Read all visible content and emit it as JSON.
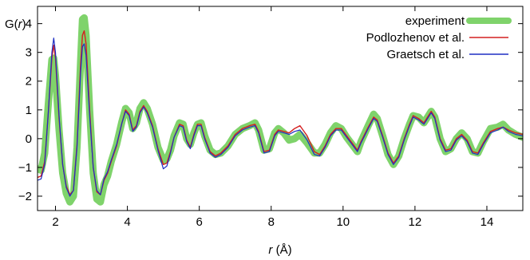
{
  "chart_data": {
    "type": "line",
    "xlabel_italic": "r",
    "xlabel_rest": " (Å)",
    "ylabel_prefix": "G(",
    "ylabel_italic": "r",
    "ylabel_suffix": ")",
    "xlim": [
      1.5,
      15
    ],
    "ylim": [
      -2.5,
      4.6
    ],
    "xticks": [
      2,
      4,
      6,
      8,
      10,
      12,
      14
    ],
    "yticks": [
      -2,
      -1,
      0,
      1,
      2,
      3,
      4
    ],
    "grid": false,
    "legend_position": "top-right",
    "series": [
      {
        "name": "experiment",
        "color": "#7fd36b",
        "points": [
          [
            1.5,
            -1.05
          ],
          [
            1.6,
            -1.1
          ],
          [
            1.7,
            -0.5
          ],
          [
            1.8,
            1.2
          ],
          [
            1.9,
            2.75
          ],
          [
            1.95,
            2.8
          ],
          [
            2.0,
            2.2
          ],
          [
            2.1,
            0.3
          ],
          [
            2.2,
            -1.2
          ],
          [
            2.3,
            -1.9
          ],
          [
            2.4,
            -2.2
          ],
          [
            2.5,
            -2.0
          ],
          [
            2.6,
            -0.3
          ],
          [
            2.7,
            2.7
          ],
          [
            2.75,
            4.15
          ],
          [
            2.8,
            4.2
          ],
          [
            2.85,
            3.6
          ],
          [
            2.95,
            1.0
          ],
          [
            3.05,
            -1.2
          ],
          [
            3.15,
            -2.1
          ],
          [
            3.25,
            -2.2
          ],
          [
            3.35,
            -1.6
          ],
          [
            3.45,
            -1.3
          ],
          [
            3.55,
            -0.8
          ],
          [
            3.7,
            -0.2
          ],
          [
            3.85,
            0.6
          ],
          [
            3.95,
            1.05
          ],
          [
            4.05,
            0.9
          ],
          [
            4.15,
            0.35
          ],
          [
            4.25,
            0.55
          ],
          [
            4.35,
            1.05
          ],
          [
            4.45,
            1.25
          ],
          [
            4.55,
            1.05
          ],
          [
            4.7,
            0.5
          ],
          [
            4.85,
            -0.3
          ],
          [
            5.0,
            -0.75
          ],
          [
            5.1,
            -0.7
          ],
          [
            5.2,
            -0.4
          ],
          [
            5.3,
            0.1
          ],
          [
            5.45,
            0.55
          ],
          [
            5.55,
            0.5
          ],
          [
            5.65,
            0.0
          ],
          [
            5.75,
            -0.2
          ],
          [
            5.85,
            0.2
          ],
          [
            5.95,
            0.5
          ],
          [
            6.05,
            0.55
          ],
          [
            6.15,
            0.1
          ],
          [
            6.3,
            -0.4
          ],
          [
            6.45,
            -0.55
          ],
          [
            6.6,
            -0.5
          ],
          [
            6.8,
            -0.25
          ],
          [
            7.0,
            0.15
          ],
          [
            7.2,
            0.35
          ],
          [
            7.4,
            0.45
          ],
          [
            7.55,
            0.55
          ],
          [
            7.65,
            0.3
          ],
          [
            7.8,
            -0.4
          ],
          [
            7.95,
            -0.35
          ],
          [
            8.1,
            0.2
          ],
          [
            8.2,
            0.35
          ],
          [
            8.35,
            0.2
          ],
          [
            8.5,
            -0.05
          ],
          [
            8.65,
            0.0
          ],
          [
            8.8,
            0.15
          ],
          [
            9.0,
            -0.15
          ],
          [
            9.2,
            -0.5
          ],
          [
            9.35,
            -0.5
          ],
          [
            9.5,
            -0.2
          ],
          [
            9.65,
            0.2
          ],
          [
            9.8,
            0.45
          ],
          [
            9.95,
            0.35
          ],
          [
            10.1,
            0.05
          ],
          [
            10.25,
            -0.2
          ],
          [
            10.4,
            -0.45
          ],
          [
            10.5,
            -0.1
          ],
          [
            10.7,
            0.45
          ],
          [
            10.85,
            0.85
          ],
          [
            10.95,
            0.7
          ],
          [
            11.1,
            0.1
          ],
          [
            11.25,
            -0.55
          ],
          [
            11.4,
            -0.9
          ],
          [
            11.55,
            -0.6
          ],
          [
            11.7,
            0.0
          ],
          [
            11.85,
            0.5
          ],
          [
            11.95,
            0.8
          ],
          [
            12.1,
            0.75
          ],
          [
            12.25,
            0.55
          ],
          [
            12.35,
            0.75
          ],
          [
            12.45,
            0.95
          ],
          [
            12.55,
            0.75
          ],
          [
            12.7,
            0.0
          ],
          [
            12.85,
            -0.45
          ],
          [
            13.0,
            -0.35
          ],
          [
            13.15,
            0.0
          ],
          [
            13.3,
            0.2
          ],
          [
            13.45,
            0.0
          ],
          [
            13.6,
            -0.45
          ],
          [
            13.75,
            -0.5
          ],
          [
            13.9,
            -0.1
          ],
          [
            14.1,
            0.35
          ],
          [
            14.3,
            0.4
          ],
          [
            14.45,
            0.5
          ],
          [
            14.6,
            0.3
          ],
          [
            14.8,
            0.15
          ],
          [
            15.0,
            0.05
          ]
        ]
      },
      {
        "name": "Podlozhenov et al.",
        "color": "#d42020",
        "points": [
          [
            1.5,
            -1.35
          ],
          [
            1.6,
            -1.3
          ],
          [
            1.7,
            -0.8
          ],
          [
            1.8,
            0.9
          ],
          [
            1.9,
            2.8
          ],
          [
            1.95,
            3.25
          ],
          [
            2.0,
            2.8
          ],
          [
            2.1,
            0.7
          ],
          [
            2.2,
            -0.9
          ],
          [
            2.3,
            -1.65
          ],
          [
            2.4,
            -1.95
          ],
          [
            2.5,
            -1.8
          ],
          [
            2.6,
            -0.2
          ],
          [
            2.7,
            2.6
          ],
          [
            2.75,
            3.6
          ],
          [
            2.8,
            3.75
          ],
          [
            2.85,
            3.3
          ],
          [
            2.95,
            1.0
          ],
          [
            3.05,
            -1.0
          ],
          [
            3.15,
            -1.85
          ],
          [
            3.25,
            -1.95
          ],
          [
            3.35,
            -1.45
          ],
          [
            3.45,
            -1.2
          ],
          [
            3.55,
            -0.8
          ],
          [
            3.7,
            -0.25
          ],
          [
            3.85,
            0.55
          ],
          [
            3.95,
            1.0
          ],
          [
            4.05,
            0.85
          ],
          [
            4.15,
            0.3
          ],
          [
            4.25,
            0.45
          ],
          [
            4.35,
            0.95
          ],
          [
            4.45,
            1.15
          ],
          [
            4.55,
            0.95
          ],
          [
            4.7,
            0.45
          ],
          [
            4.85,
            -0.35
          ],
          [
            5.0,
            -0.9
          ],
          [
            5.1,
            -0.85
          ],
          [
            5.2,
            -0.45
          ],
          [
            5.3,
            0.05
          ],
          [
            5.45,
            0.5
          ],
          [
            5.55,
            0.45
          ],
          [
            5.65,
            -0.05
          ],
          [
            5.75,
            -0.3
          ],
          [
            5.85,
            0.15
          ],
          [
            5.95,
            0.5
          ],
          [
            6.05,
            0.5
          ],
          [
            6.15,
            0.05
          ],
          [
            6.3,
            -0.45
          ],
          [
            6.45,
            -0.6
          ],
          [
            6.6,
            -0.5
          ],
          [
            6.8,
            -0.25
          ],
          [
            7.0,
            0.15
          ],
          [
            7.2,
            0.35
          ],
          [
            7.4,
            0.45
          ],
          [
            7.55,
            0.5
          ],
          [
            7.65,
            0.25
          ],
          [
            7.8,
            -0.45
          ],
          [
            7.95,
            -0.4
          ],
          [
            8.1,
            0.15
          ],
          [
            8.2,
            0.3
          ],
          [
            8.35,
            0.25
          ],
          [
            8.5,
            0.2
          ],
          [
            8.65,
            0.35
          ],
          [
            8.8,
            0.45
          ],
          [
            9.0,
            0.1
          ],
          [
            9.2,
            -0.45
          ],
          [
            9.35,
            -0.55
          ],
          [
            9.5,
            -0.25
          ],
          [
            9.65,
            0.15
          ],
          [
            9.8,
            0.35
          ],
          [
            9.95,
            0.35
          ],
          [
            10.1,
            0.1
          ],
          [
            10.25,
            -0.15
          ],
          [
            10.4,
            -0.4
          ],
          [
            10.5,
            -0.1
          ],
          [
            10.7,
            0.4
          ],
          [
            10.85,
            0.75
          ],
          [
            10.95,
            0.65
          ],
          [
            11.1,
            0.1
          ],
          [
            11.25,
            -0.5
          ],
          [
            11.4,
            -0.85
          ],
          [
            11.55,
            -0.6
          ],
          [
            11.7,
            0.0
          ],
          [
            11.85,
            0.5
          ],
          [
            11.95,
            0.8
          ],
          [
            12.1,
            0.7
          ],
          [
            12.25,
            0.55
          ],
          [
            12.35,
            0.75
          ],
          [
            12.45,
            0.95
          ],
          [
            12.55,
            0.75
          ],
          [
            12.7,
            0.0
          ],
          [
            12.85,
            -0.4
          ],
          [
            13.0,
            -0.35
          ],
          [
            13.15,
            0.0
          ],
          [
            13.3,
            0.15
          ],
          [
            13.45,
            -0.05
          ],
          [
            13.6,
            -0.45
          ],
          [
            13.75,
            -0.5
          ],
          [
            13.9,
            -0.15
          ],
          [
            14.1,
            0.25
          ],
          [
            14.3,
            0.35
          ],
          [
            14.45,
            0.4
          ],
          [
            14.6,
            0.3
          ],
          [
            14.8,
            0.2
          ],
          [
            15.0,
            0.15
          ]
        ]
      },
      {
        "name": "Graetsch et al.",
        "color": "#1f2fc4",
        "points": [
          [
            1.5,
            -1.45
          ],
          [
            1.6,
            -1.4
          ],
          [
            1.7,
            -0.9
          ],
          [
            1.8,
            0.9
          ],
          [
            1.9,
            3.0
          ],
          [
            1.95,
            3.5
          ],
          [
            2.0,
            3.0
          ],
          [
            2.1,
            0.8
          ],
          [
            2.2,
            -0.9
          ],
          [
            2.3,
            -1.7
          ],
          [
            2.4,
            -2.0
          ],
          [
            2.5,
            -1.8
          ],
          [
            2.6,
            -0.3
          ],
          [
            2.7,
            2.3
          ],
          [
            2.75,
            3.2
          ],
          [
            2.8,
            3.3
          ],
          [
            2.85,
            2.9
          ],
          [
            2.95,
            0.8
          ],
          [
            3.05,
            -1.0
          ],
          [
            3.15,
            -1.8
          ],
          [
            3.25,
            -1.95
          ],
          [
            3.35,
            -1.4
          ],
          [
            3.45,
            -1.15
          ],
          [
            3.55,
            -0.75
          ],
          [
            3.7,
            -0.2
          ],
          [
            3.85,
            0.55
          ],
          [
            3.95,
            0.95
          ],
          [
            4.05,
            0.8
          ],
          [
            4.15,
            0.25
          ],
          [
            4.25,
            0.4
          ],
          [
            4.35,
            0.9
          ],
          [
            4.45,
            1.1
          ],
          [
            4.55,
            0.9
          ],
          [
            4.7,
            0.4
          ],
          [
            4.85,
            -0.4
          ],
          [
            5.0,
            -1.05
          ],
          [
            5.1,
            -0.95
          ],
          [
            5.2,
            -0.5
          ],
          [
            5.3,
            0.05
          ],
          [
            5.45,
            0.45
          ],
          [
            5.55,
            0.4
          ],
          [
            5.65,
            -0.1
          ],
          [
            5.75,
            -0.35
          ],
          [
            5.85,
            0.1
          ],
          [
            5.95,
            0.45
          ],
          [
            6.05,
            0.45
          ],
          [
            6.15,
            0.0
          ],
          [
            6.3,
            -0.5
          ],
          [
            6.45,
            -0.65
          ],
          [
            6.6,
            -0.55
          ],
          [
            6.8,
            -0.3
          ],
          [
            7.0,
            0.1
          ],
          [
            7.2,
            0.3
          ],
          [
            7.4,
            0.4
          ],
          [
            7.55,
            0.45
          ],
          [
            7.65,
            0.2
          ],
          [
            7.8,
            -0.5
          ],
          [
            7.95,
            -0.45
          ],
          [
            8.1,
            0.1
          ],
          [
            8.2,
            0.25
          ],
          [
            8.35,
            0.2
          ],
          [
            8.5,
            0.15
          ],
          [
            8.65,
            0.25
          ],
          [
            8.8,
            0.3
          ],
          [
            9.0,
            -0.05
          ],
          [
            9.2,
            -0.55
          ],
          [
            9.35,
            -0.6
          ],
          [
            9.5,
            -0.3
          ],
          [
            9.65,
            0.1
          ],
          [
            9.8,
            0.3
          ],
          [
            9.95,
            0.3
          ],
          [
            10.1,
            0.05
          ],
          [
            10.25,
            -0.2
          ],
          [
            10.4,
            -0.45
          ],
          [
            10.5,
            -0.15
          ],
          [
            10.7,
            0.35
          ],
          [
            10.85,
            0.7
          ],
          [
            10.95,
            0.6
          ],
          [
            11.1,
            0.05
          ],
          [
            11.25,
            -0.55
          ],
          [
            11.4,
            -0.9
          ],
          [
            11.55,
            -0.65
          ],
          [
            11.7,
            -0.05
          ],
          [
            11.85,
            0.45
          ],
          [
            11.95,
            0.75
          ],
          [
            12.1,
            0.65
          ],
          [
            12.25,
            0.5
          ],
          [
            12.35,
            0.7
          ],
          [
            12.45,
            0.9
          ],
          [
            12.55,
            0.7
          ],
          [
            12.7,
            -0.05
          ],
          [
            12.85,
            -0.45
          ],
          [
            13.0,
            -0.4
          ],
          [
            13.15,
            -0.05
          ],
          [
            13.3,
            0.1
          ],
          [
            13.45,
            -0.1
          ],
          [
            13.6,
            -0.5
          ],
          [
            13.75,
            -0.55
          ],
          [
            13.9,
            -0.2
          ],
          [
            14.1,
            0.2
          ],
          [
            14.3,
            0.3
          ],
          [
            14.45,
            0.4
          ],
          [
            14.6,
            0.25
          ],
          [
            14.8,
            0.15
          ],
          [
            15.0,
            0.1
          ]
        ]
      }
    ]
  }
}
